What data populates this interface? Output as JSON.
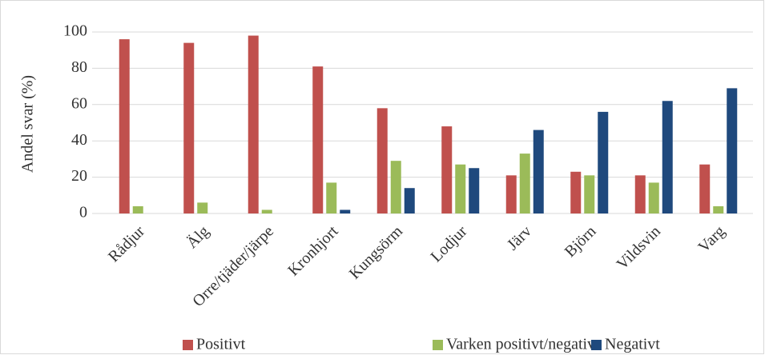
{
  "chart_data": {
    "type": "bar",
    "y_label": "Andel svar (%)",
    "categories": [
      "Rådjur",
      "Älg",
      "Orre/tjäder/järpe",
      "Kronhjort",
      "Kungsörm",
      "Lodjur",
      "Järv",
      "Björn",
      "Vildsvin",
      "Varg"
    ],
    "series": [
      {
        "name": "Positivt",
        "color": "#c0504d",
        "values": [
          96,
          94,
          98,
          81,
          58,
          48,
          21,
          23,
          21,
          27
        ]
      },
      {
        "name": "Varken positivt/negativt",
        "color": "#9bbb59",
        "values": [
          4,
          6,
          2,
          17,
          29,
          27,
          33,
          21,
          17,
          4
        ]
      },
      {
        "name": "Negativt",
        "color": "#1f497d",
        "values": [
          0,
          0,
          0,
          2,
          14,
          25,
          46,
          56,
          62,
          69
        ]
      }
    ],
    "ylim": [
      0,
      100
    ],
    "yticks": [
      0,
      20,
      40,
      60,
      80,
      100
    ],
    "grid": true,
    "legend": "bottom"
  }
}
